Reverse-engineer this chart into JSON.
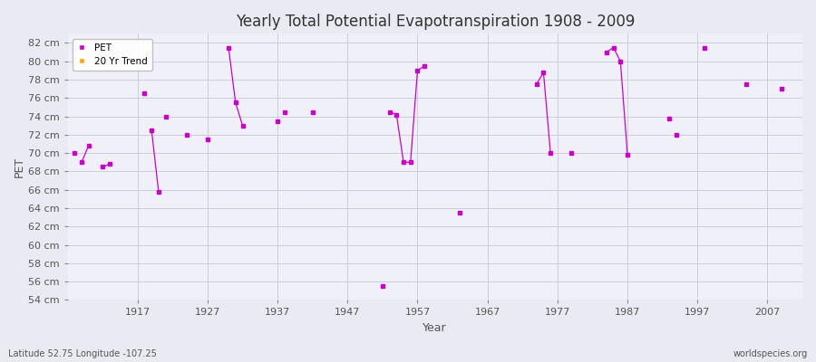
{
  "title": "Yearly Total Potential Evapotranspiration 1908 - 2009",
  "xlabel": "Year",
  "ylabel": "PET",
  "subtitle_left": "Latitude 52.75 Longitude -107.25",
  "subtitle_right": "worldspecies.org",
  "ylim": [
    54,
    83
  ],
  "xlim": [
    1907,
    2012
  ],
  "yticks": [
    54,
    56,
    58,
    60,
    62,
    64,
    66,
    68,
    70,
    72,
    74,
    76,
    78,
    80,
    82
  ],
  "xticks": [
    1917,
    1927,
    1937,
    1947,
    1957,
    1967,
    1977,
    1987,
    1997,
    2007
  ],
  "pet_color": "#CC00CC",
  "trend_color": "#FFA500",
  "bg_color": "#EAEAF2",
  "plot_bg_color": "#F0F0F8",
  "grid_color": "#CCCCDD",
  "isolated_points": [
    [
      1908,
      70.0
    ],
    [
      1918,
      76.5
    ],
    [
      1921,
      74.0
    ],
    [
      1924,
      72.0
    ],
    [
      1927,
      71.5
    ],
    [
      1937,
      73.5
    ],
    [
      1938,
      74.5
    ],
    [
      1942,
      74.5
    ],
    [
      1952,
      55.5
    ],
    [
      1963,
      63.5
    ],
    [
      1979,
      70.0
    ],
    [
      1993,
      73.8
    ],
    [
      1994,
      72.0
    ],
    [
      1998,
      81.5
    ],
    [
      2004,
      77.5
    ],
    [
      2009,
      77.0
    ]
  ],
  "connected_segments": [
    [
      [
        1909,
        69.0
      ],
      [
        1910,
        70.8
      ]
    ],
    [
      [
        1912,
        68.5
      ],
      [
        1913,
        68.8
      ]
    ],
    [
      [
        1919,
        72.5
      ],
      [
        1920,
        65.8
      ]
    ],
    [
      [
        1930,
        81.5
      ],
      [
        1931,
        75.5
      ],
      [
        1932,
        73.0
      ]
    ],
    [
      [
        1953,
        74.5
      ],
      [
        1954,
        74.2
      ],
      [
        1955,
        69.0
      ],
      [
        1956,
        69.0
      ],
      [
        1957,
        79.0
      ],
      [
        1958,
        79.5
      ]
    ],
    [
      [
        1974,
        77.5
      ],
      [
        1975,
        78.8
      ],
      [
        1976,
        70.0
      ]
    ],
    [
      [
        1984,
        81.0
      ],
      [
        1985,
        81.5
      ],
      [
        1986,
        80.0
      ],
      [
        1987,
        69.8
      ]
    ]
  ]
}
